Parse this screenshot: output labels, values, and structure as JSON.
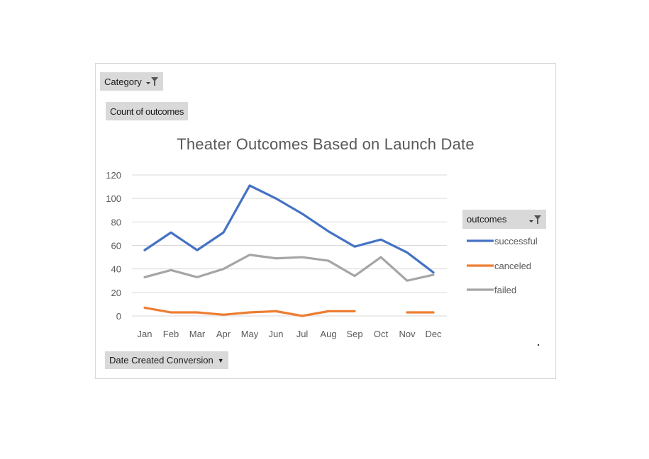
{
  "pivot": {
    "filter_label": "Category",
    "values_label": "Count of outcomes",
    "axis_field_label": "Date Created Conversion",
    "legend_field_label": "outcomes"
  },
  "icons": {
    "filter": "filter-funnel-icon",
    "dropdown": "dropdown-arrow-icon"
  },
  "chart_data": {
    "type": "line",
    "title": "Theater Outcomes Based on Launch Date",
    "xlabel": "",
    "ylabel": "",
    "categories": [
      "Jan",
      "Feb",
      "Mar",
      "Apr",
      "May",
      "Jun",
      "Jul",
      "Aug",
      "Sep",
      "Oct",
      "Nov",
      "Dec"
    ],
    "ylim": [
      0,
      120
    ],
    "yticks": [
      0,
      20,
      40,
      60,
      80,
      100,
      120
    ],
    "grid": true,
    "legend_position": "right",
    "series": [
      {
        "name": "successful",
        "color": "#4472c4",
        "values": [
          56,
          71,
          56,
          71,
          111,
          100,
          87,
          72,
          59,
          65,
          54,
          37
        ]
      },
      {
        "name": "canceled",
        "color": "#ed7d31",
        "values": [
          7,
          3,
          3,
          1,
          3,
          4,
          0,
          4,
          4,
          null,
          3,
          3
        ]
      },
      {
        "name": "failed",
        "color": "#a5a5a5",
        "values": [
          33,
          39,
          33,
          40,
          52,
          49,
          50,
          47,
          34,
          50,
          30,
          35
        ]
      }
    ]
  }
}
